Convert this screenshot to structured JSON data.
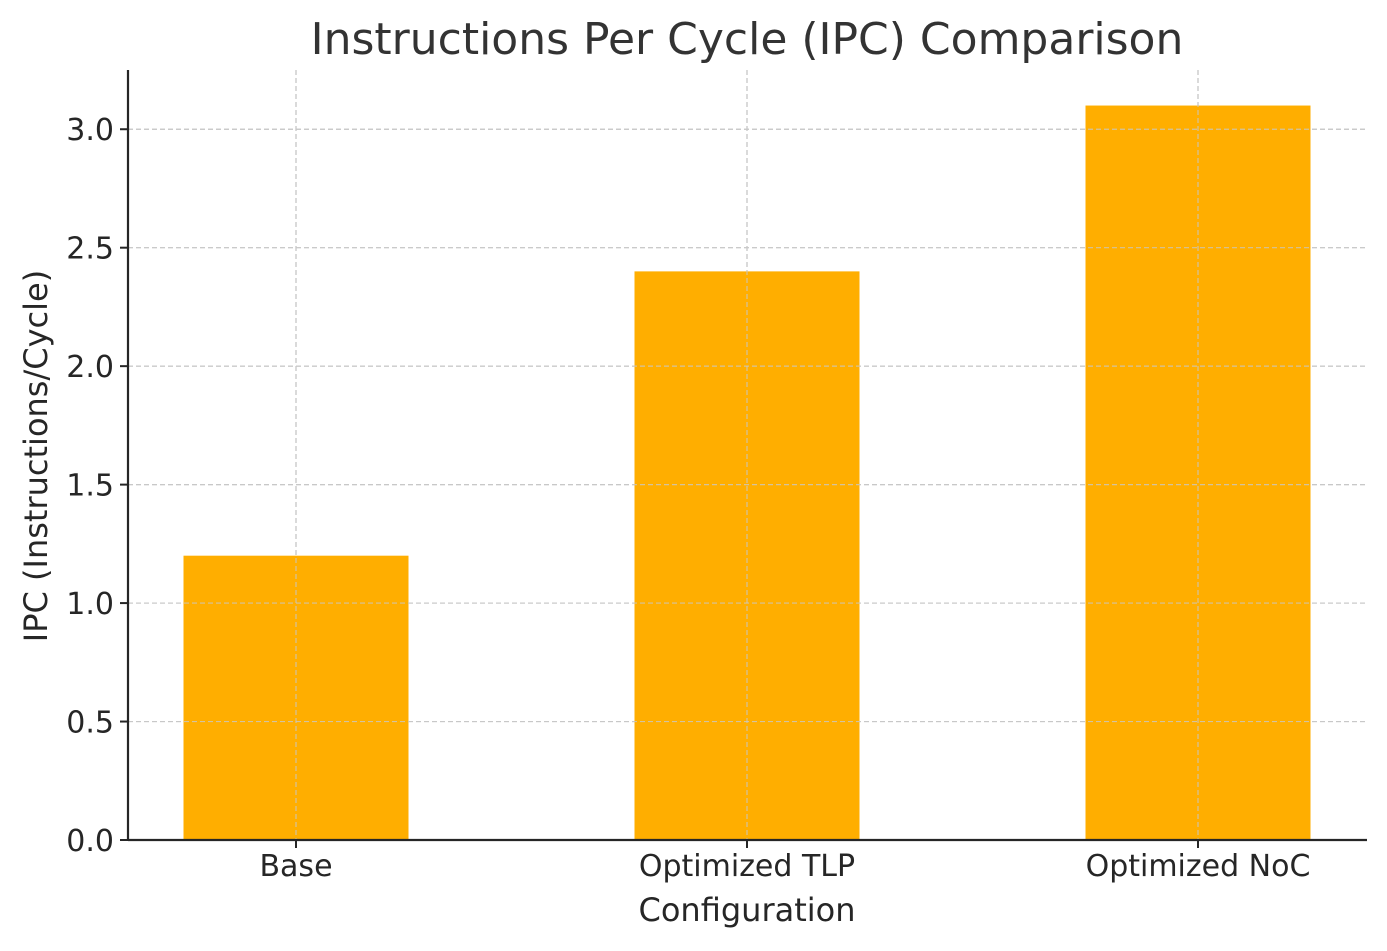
{
  "chart_data": {
    "type": "bar",
    "title": "Instructions Per Cycle (IPC) Comparison",
    "xlabel": "Configuration",
    "ylabel": "IPC (Instructions/Cycle)",
    "categories": [
      "Base",
      "Optimized TLP",
      "Optimized NoC"
    ],
    "values": [
      1.2,
      2.4,
      3.1
    ],
    "ylim": [
      0,
      3.25
    ],
    "yticks": [
      "0.0",
      "0.5",
      "1.0",
      "1.5",
      "2.0",
      "2.5",
      "3.0"
    ],
    "grid": true,
    "legend": "none",
    "colors": {
      "bar": "#ffae00",
      "grid": "#c8c8c8",
      "axis": "#262626",
      "text": "#262626",
      "title": "#333333"
    }
  }
}
